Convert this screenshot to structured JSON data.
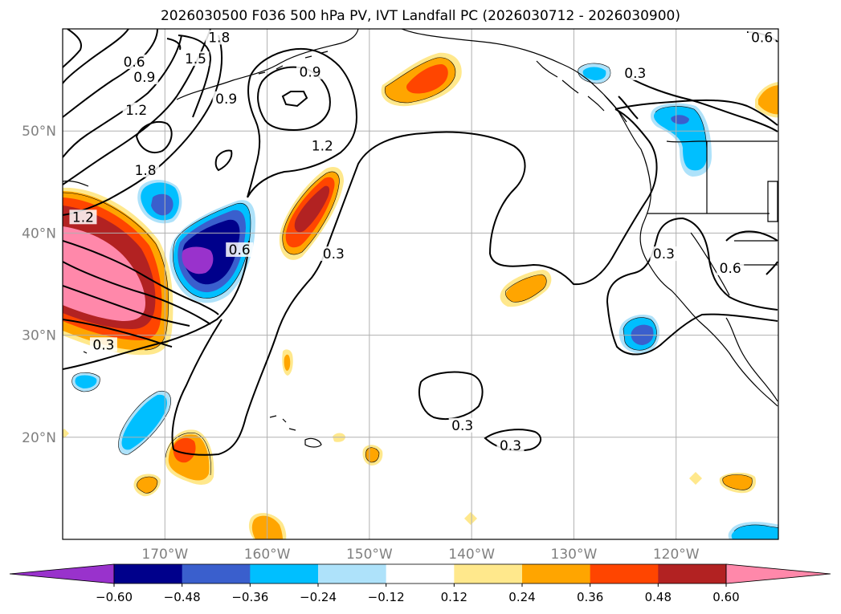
{
  "title": "2026030500 F036 500 hPa PV, IVT Landfall PC (2026030712 - 2026030900)",
  "map": {
    "projection": "PlateCarree",
    "lon_range": [
      -180,
      -110
    ],
    "lat_range": [
      10,
      60
    ],
    "lon_ticks": [
      {
        "value": -170,
        "label": "170°W"
      },
      {
        "value": -160,
        "label": "160°W"
      },
      {
        "value": -150,
        "label": "150°W"
      },
      {
        "value": -140,
        "label": "140°W"
      },
      {
        "value": -130,
        "label": "130°W"
      },
      {
        "value": -120,
        "label": "120°W"
      }
    ],
    "lat_ticks": [
      {
        "value": 20,
        "label": "20°N"
      },
      {
        "value": 30,
        "label": "30°N"
      },
      {
        "value": 40,
        "label": "40°N"
      },
      {
        "value": 50,
        "label": "50°N"
      }
    ],
    "grid": true,
    "colors": {
      "grid": "#b0b0b0",
      "tick_label": "#808080",
      "contour": "#000000",
      "coast": "#000000"
    }
  },
  "chart_data": {
    "type": "contour",
    "title": "2026030500 F036 500 hPa PV, IVT Landfall PC (2026030712 - 2026030900)",
    "line_contour_field": "500 hPa PV",
    "filled_contour_field": "IVT Landfall PC",
    "pv_contour_labels": [
      {
        "text": "0.6",
        "lon": -173.0,
        "lat": 56.7
      },
      {
        "text": "1.5",
        "lon": -167.0,
        "lat": 57.0
      },
      {
        "text": "1.8",
        "lon": -164.7,
        "lat": 59.1
      },
      {
        "text": "0.9",
        "lon": -172.0,
        "lat": 55.2
      },
      {
        "text": "1.2",
        "lon": -172.8,
        "lat": 52.0
      },
      {
        "text": "0.9",
        "lon": -155.8,
        "lat": 55.7
      },
      {
        "text": "0.9",
        "lon": -164.0,
        "lat": 53.1
      },
      {
        "text": "1.2",
        "lon": -154.6,
        "lat": 48.5
      },
      {
        "text": "1.8",
        "lon": -171.9,
        "lat": 46.1
      },
      {
        "text": "1.2",
        "lon": -178.0,
        "lat": 41.5
      },
      {
        "text": "0.6",
        "lon": -162.7,
        "lat": 38.3
      },
      {
        "text": "0.3",
        "lon": -153.5,
        "lat": 37.9
      },
      {
        "text": "0.3",
        "lon": -176.0,
        "lat": 29.0
      },
      {
        "text": "0.3",
        "lon": -140.9,
        "lat": 21.1
      },
      {
        "text": "0.3",
        "lon": -136.2,
        "lat": 19.1
      },
      {
        "text": "0.3",
        "lon": -124.0,
        "lat": 55.6
      },
      {
        "text": "0.3",
        "lon": -121.2,
        "lat": 37.9
      },
      {
        "text": "0.6",
        "lon": -114.7,
        "lat": 36.5
      },
      {
        "text": "0.6",
        "lon": -111.6,
        "lat": 59.1
      }
    ],
    "colorbar": {
      "extend": "both",
      "levels": [
        -0.6,
        -0.48,
        -0.36,
        -0.24,
        -0.12,
        0.12,
        0.24,
        0.36,
        0.48,
        0.6
      ],
      "tick_labels": [
        "−0.60",
        "−0.48",
        "−0.36",
        "−0.24",
        "−0.12",
        "0.12",
        "0.24",
        "0.36",
        "0.48",
        "0.60"
      ],
      "colors": [
        "#9932CC",
        "#00008B",
        "#3A5FCD",
        "#00BFFF",
        "#AEE2FA",
        "#FFFFFF",
        "#FFE88C",
        "#FFA500",
        "#FF4500",
        "#B22222",
        "#FF88AA"
      ]
    }
  }
}
